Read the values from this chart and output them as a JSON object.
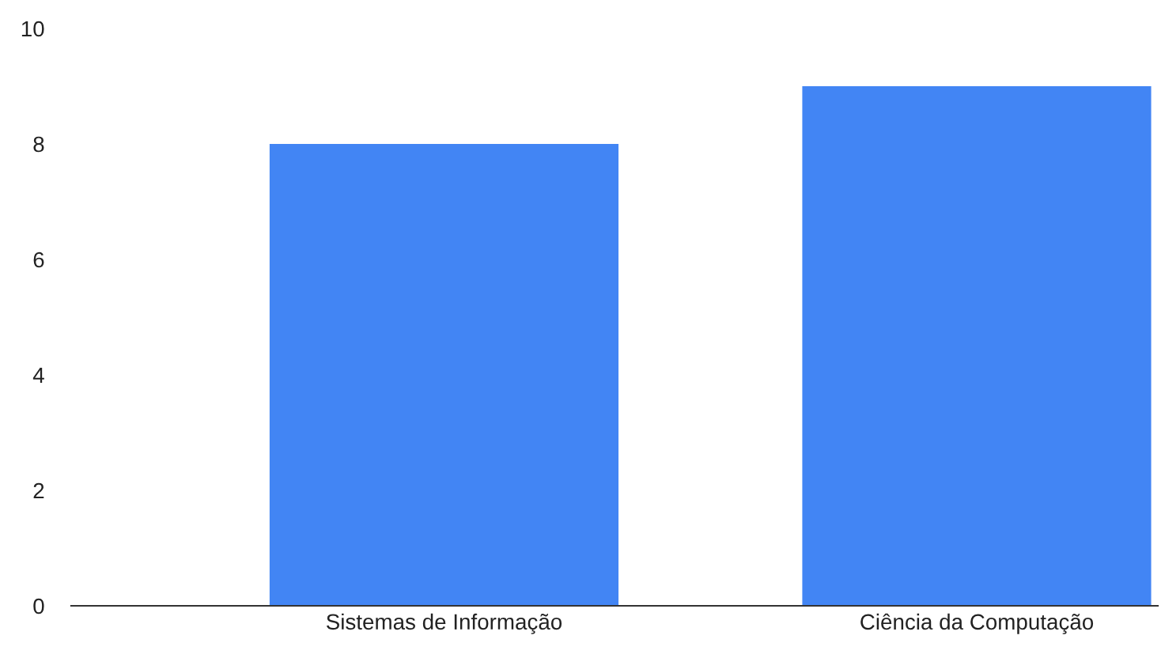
{
  "chart_data": {
    "type": "bar",
    "categories": [
      "Sistemas de Informação",
      "Ciência da Computação"
    ],
    "values": [
      8,
      9
    ],
    "color": "#4285f4",
    "ylim": [
      0,
      10
    ],
    "yticks": [
      0,
      2,
      4,
      6,
      8,
      10
    ],
    "grid": false,
    "legend": false
  }
}
